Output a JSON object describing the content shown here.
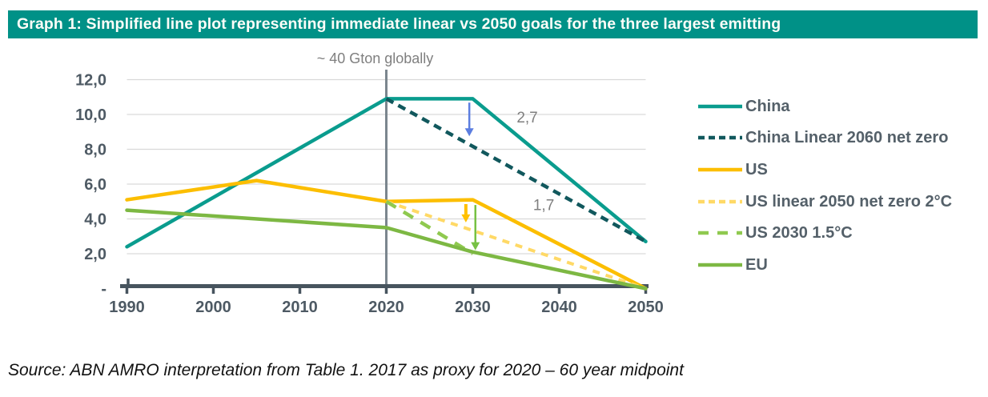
{
  "header": {
    "title": "Graph 1:  Simplified line plot representing immediate linear vs 2050 goals for the three largest emitting",
    "bg_color": "#009187",
    "text_color": "#FDFDF8"
  },
  "source_note": "Source: ABN AMRO interpretation from Table 1. 2017 as proxy for 2020 – 60 year midpoint",
  "colors": {
    "axis": "#47545E",
    "tick_label": "#4E5A64",
    "grid": "#D9D9D9",
    "legend_text": "#546069"
  },
  "chart_data": {
    "type": "line",
    "title": "",
    "xlabel": "",
    "ylabel": "",
    "grid": true,
    "legend_position": "right",
    "xlim": [
      1990,
      2050
    ],
    "ylim": [
      0,
      12
    ],
    "x_axis": {
      "tick_values": [
        1990,
        2000,
        2010,
        2020,
        2030,
        2040,
        2050
      ],
      "tick_labels": [
        "1990",
        "2000",
        "2010",
        "2020",
        "2030",
        "2040",
        "2050"
      ]
    },
    "y_axis": {
      "tick_values": [
        12,
        10,
        8,
        6,
        4,
        2,
        0
      ],
      "tick_labels": [
        "12,0",
        "10,0",
        "8,0",
        "6,0",
        "4,0",
        "2,0",
        "-"
      ]
    },
    "series": [
      {
        "name": "China",
        "color": "#0A9C8E",
        "style": "solid",
        "width": 4.5,
        "legend_dash": "",
        "points": [
          [
            1990,
            2.4
          ],
          [
            2020,
            10.9
          ],
          [
            2030,
            10.9
          ],
          [
            2050,
            2.7
          ]
        ]
      },
      {
        "name": "China Linear 2060 net zero",
        "color": "#11585D",
        "style": "dashed",
        "dash": "10,7",
        "width": 4.5,
        "legend_dash": "8,5",
        "points": [
          [
            2020,
            10.9
          ],
          [
            2050,
            2.7
          ]
        ]
      },
      {
        "name": "US",
        "color": "#FCBE00",
        "style": "solid",
        "width": 4.5,
        "legend_dash": "",
        "points": [
          [
            1990,
            5.1
          ],
          [
            2005,
            6.2
          ],
          [
            2020,
            5.0
          ],
          [
            2030,
            5.1
          ],
          [
            2050,
            0
          ]
        ]
      },
      {
        "name": "US linear 2050 net zero 2°C",
        "color": "#FFD966",
        "style": "dashed",
        "dash": "9,8",
        "width": 4,
        "legend_dash": "8,5",
        "points": [
          [
            2020,
            5.0
          ],
          [
            2050,
            0
          ]
        ]
      },
      {
        "name": "US 2030 1.5°C",
        "color": "#8FC94F",
        "style": "dashed",
        "dash": "14,11",
        "width": 4.5,
        "legend_dash": "13,11",
        "points": [
          [
            2020,
            5.0
          ],
          [
            2030,
            2.0
          ]
        ]
      },
      {
        "name": "EU",
        "color": "#7DB843",
        "style": "solid",
        "width": 4.5,
        "legend_dash": "",
        "points": [
          [
            1990,
            4.5
          ],
          [
            2020,
            3.5
          ],
          [
            2030,
            2.1
          ],
          [
            2050,
            0
          ]
        ]
      }
    ],
    "vertical_marker": {
      "x": 2020,
      "color": "#7B868E",
      "label": "~ 40 Gton globally",
      "label_color": "#7F7F7F"
    },
    "annotations": [
      {
        "text": "2,7",
        "x": 2036.3,
        "y": 9.55,
        "color": "#7F7F7F"
      },
      {
        "text": "1,7",
        "x": 2038.2,
        "y": 4.5,
        "color": "#7F7F7F"
      }
    ],
    "arrows": [
      {
        "name": "china-linear-reduction-arrow",
        "x": 2029.6,
        "y1": 10.68,
        "y2": 8.75,
        "color": "#5C7EE0",
        "width": 2.5
      },
      {
        "name": "us-linear-reduction-arrow",
        "x": 2029.2,
        "y1": 4.85,
        "y2": 3.8,
        "color": "#FFC000",
        "width": 4
      },
      {
        "name": "us-15c-reduction-arrow",
        "x": 2030.3,
        "y1": 4.8,
        "y2": 2.2,
        "color": "#77C144",
        "width": 2.5
      }
    ]
  }
}
